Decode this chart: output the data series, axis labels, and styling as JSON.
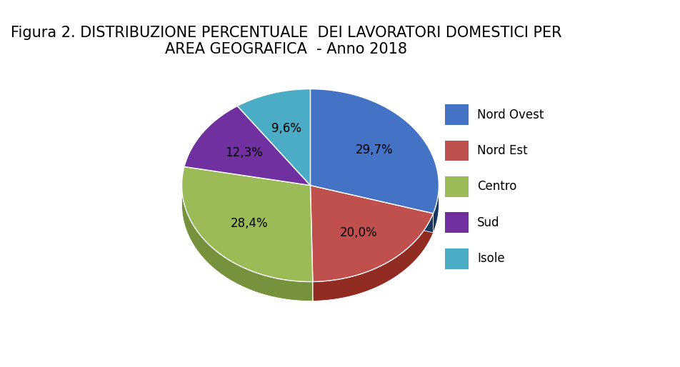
{
  "title": "Figura 2. DISTRIBUZIONE PERCENTUALE  DEI LAVORATORI DOMESTICI PER\nAREA GEOGRAFICA  - Anno 2018",
  "labels": [
    "Nord Ovest",
    "Nord Est",
    "Centro",
    "Sud",
    "Isole"
  ],
  "values": [
    29.7,
    20.0,
    28.4,
    12.3,
    9.6
  ],
  "colors": [
    "#4472C4",
    "#C0504D",
    "#9BBB59",
    "#7030A0",
    "#4BACC6"
  ],
  "dark_colors": [
    "#17375E",
    "#922B21",
    "#76923C",
    "#3D1A57",
    "#17637A"
  ],
  "pct_labels": [
    "29,7%",
    "20,0%",
    "28,4%",
    "12,3%",
    "9,6%"
  ],
  "title_fontsize": 15,
  "label_fontsize": 12,
  "legend_fontsize": 12,
  "background_color": "#FFFFFF",
  "startangle": 90
}
